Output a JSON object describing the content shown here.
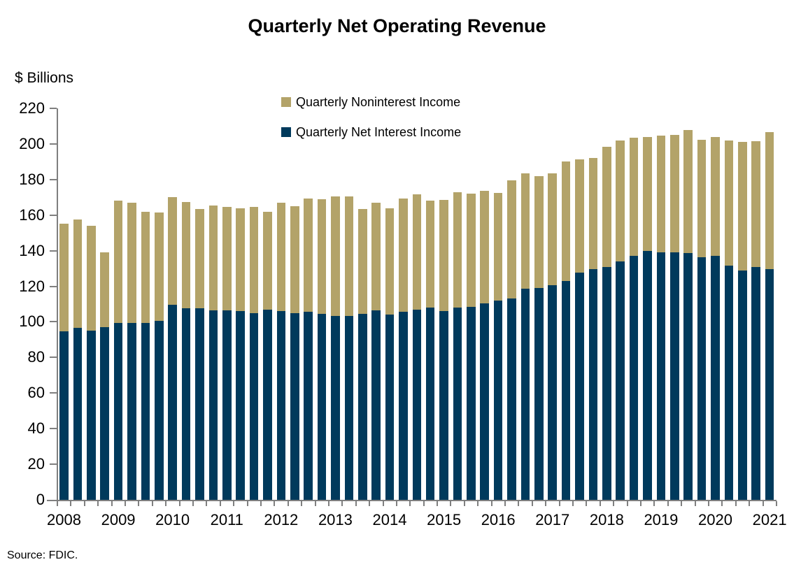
{
  "source": "Source: FDIC.",
  "chart_data": {
    "type": "bar",
    "stacked": true,
    "title": "Quarterly Net Operating Revenue",
    "ylabel": "$ Billions",
    "xlabel": "",
    "ylim": [
      0,
      220
    ],
    "ytick_step": 20,
    "grid": false,
    "legend_position": "top-center",
    "axis_color": "#7f7f7f",
    "x_year_labels": [
      "2008",
      "2009",
      "2010",
      "2011",
      "2012",
      "2013",
      "2014",
      "2015",
      "2016",
      "2017",
      "2018",
      "2019",
      "2020",
      "2021"
    ],
    "categories": [
      "2008 Q1",
      "2008 Q2",
      "2008 Q3",
      "2008 Q4",
      "2009 Q1",
      "2009 Q2",
      "2009 Q3",
      "2009 Q4",
      "2010 Q1",
      "2010 Q2",
      "2010 Q3",
      "2010 Q4",
      "2011 Q1",
      "2011 Q2",
      "2011 Q3",
      "2011 Q4",
      "2012 Q1",
      "2012 Q2",
      "2012 Q3",
      "2012 Q4",
      "2013 Q1",
      "2013 Q2",
      "2013 Q3",
      "2013 Q4",
      "2014 Q1",
      "2014 Q2",
      "2014 Q3",
      "2014 Q4",
      "2015 Q1",
      "2015 Q2",
      "2015 Q3",
      "2015 Q4",
      "2016 Q1",
      "2016 Q2",
      "2016 Q3",
      "2016 Q4",
      "2017 Q1",
      "2017 Q2",
      "2017 Q3",
      "2017 Q4",
      "2018 Q1",
      "2018 Q2",
      "2018 Q3",
      "2018 Q4",
      "2019 Q1",
      "2019 Q2",
      "2019 Q3",
      "2019 Q4",
      "2020 Q1",
      "2020 Q2",
      "2020 Q3",
      "2020 Q4",
      "2021 Q1"
    ],
    "series": [
      {
        "name": "Quarterly Net Interest Income",
        "color": "#003A5C",
        "values": [
          94.5,
          96.5,
          95,
          97,
          99.5,
          99.5,
          99.5,
          100.5,
          109.5,
          107.5,
          107.5,
          106.5,
          106.5,
          106,
          105,
          107,
          106,
          105,
          105.5,
          104.5,
          103.5,
          103.5,
          104.5,
          106.5,
          104,
          105.5,
          107,
          108,
          106,
          108,
          108.5,
          110.5,
          112,
          113,
          118.5,
          119,
          120.5,
          123,
          127.5,
          129.5,
          131,
          134,
          137,
          140,
          139,
          139,
          138.5,
          136.5,
          137,
          131.5,
          129,
          131,
          129.5
        ]
      },
      {
        "name": "Quarterly Noninterest Income",
        "color": "#B3A369",
        "values": [
          60.5,
          61,
          59,
          42,
          68.5,
          67.5,
          62.5,
          61,
          60.5,
          60,
          56,
          59,
          58,
          58,
          59.5,
          55,
          61,
          60,
          64,
          64.5,
          67,
          67,
          59,
          60.5,
          60,
          64,
          64.5,
          60,
          62.5,
          65,
          63.5,
          63,
          60.5,
          66.5,
          65,
          63,
          63,
          67,
          64,
          62.5,
          67.5,
          68,
          66.5,
          64,
          65.5,
          66,
          69.5,
          66,
          67,
          70.5,
          72,
          70.5,
          77
        ]
      }
    ],
    "legend_order": [
      "Quarterly Noninterest Income",
      "Quarterly Net Interest Income"
    ]
  }
}
